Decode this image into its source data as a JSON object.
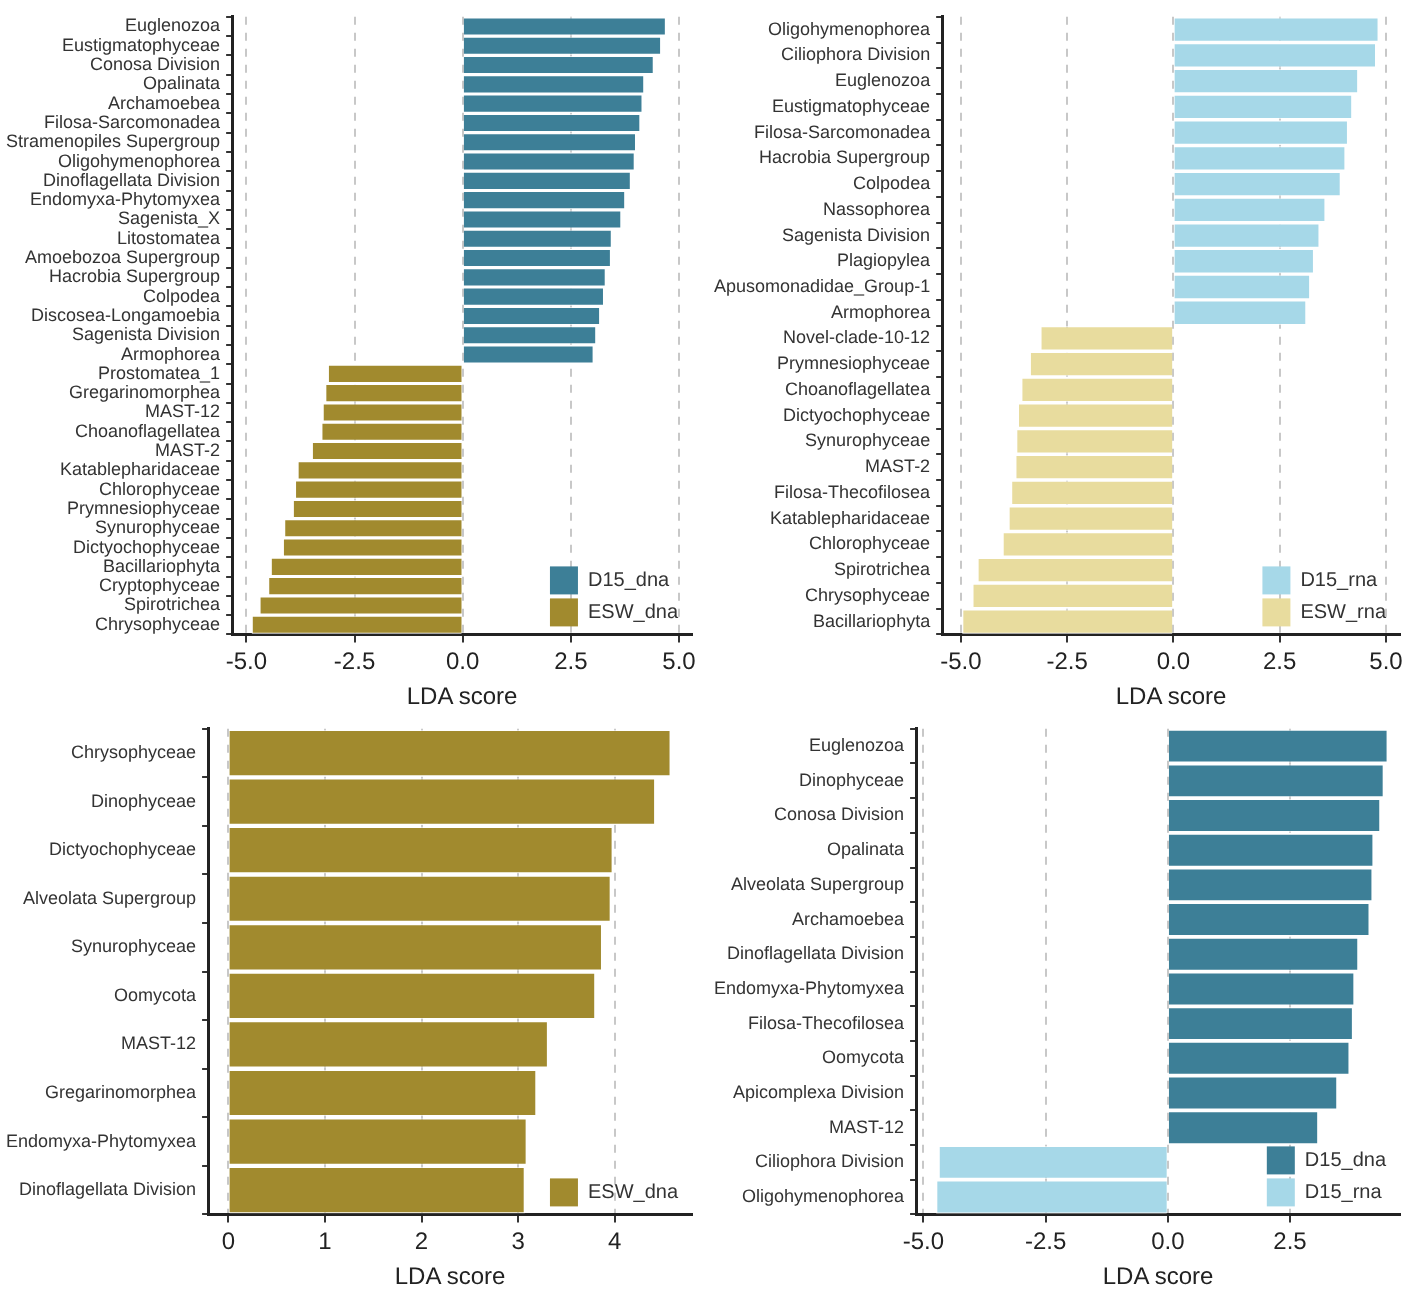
{
  "chart_data": [
    {
      "type": "bar",
      "orientation": "horizontal",
      "xlabel": "LDA score",
      "xlim": [
        -5.33,
        5.3
      ],
      "xticks": [
        {
          "value": -5,
          "label": "-5.0"
        },
        {
          "value": -2.5,
          "label": "-2.5"
        },
        {
          "value": 0,
          "label": "0.0"
        },
        {
          "value": 2.5,
          "label": "2.5"
        },
        {
          "value": 5,
          "label": "5.0"
        }
      ],
      "grid": "x",
      "legend": "bottom right",
      "categories": [
        "Euglenozoa",
        "Eustigmatophyceae",
        "Conosa Division",
        "Opalinata",
        "Archamoebea",
        "Filosa-Sarcomonadea",
        "Stramenopiles Supergroup",
        "Oligohymenophorea",
        "Dinoflagellata Division",
        "Endomyxa-Phytomyxea",
        "Sagenista_X",
        "Litostomatea",
        "Amoebozoa Supergroup",
        "Hacrobia Supergroup",
        "Colpodea",
        "Discosea-Longamoebia",
        "Sagenista Division",
        "Armophorea",
        "Prostomatea_1",
        "Gregarinomorphea",
        "MAST-12",
        "Choanoflagellatea",
        "MAST-2",
        "Katablepharidaceae",
        "Chlorophyceae",
        "Prymnesiophyceae",
        "Synurophyceae",
        "Dictyochophyceae",
        "Bacillariophyta",
        "Cryptophyceae",
        "Spirotrichea",
        "Chrysophyceae"
      ],
      "series": [
        {
          "name": "D15_dna",
          "color": "#3d7f97",
          "values": [
            4.7,
            4.59,
            4.42,
            4.2,
            4.16,
            4.11,
            4.01,
            3.98,
            3.89,
            3.76,
            3.67,
            3.45,
            3.43,
            3.31,
            3.27,
            3.18,
            3.09,
            3.03,
            null,
            null,
            null,
            null,
            null,
            null,
            null,
            null,
            null,
            null,
            null,
            null,
            null,
            null
          ]
        },
        {
          "name": "ESW_dna",
          "color": "#a18a2e",
          "values": [
            null,
            null,
            null,
            null,
            null,
            null,
            null,
            null,
            null,
            null,
            null,
            null,
            null,
            null,
            null,
            null,
            null,
            null,
            -3.12,
            -3.18,
            -3.24,
            -3.27,
            -3.49,
            -3.82,
            -3.88,
            -3.93,
            -4.13,
            -4.16,
            -4.44,
            -4.5,
            -4.7,
            -4.88
          ]
        }
      ]
    },
    {
      "type": "bar",
      "orientation": "horizontal",
      "xlabel": "LDA score",
      "xlim": [
        -5.44,
        5.33
      ],
      "xticks": [
        {
          "value": -5,
          "label": "-5.0"
        },
        {
          "value": -2.5,
          "label": "-2.5"
        },
        {
          "value": 0,
          "label": "0.0"
        },
        {
          "value": 2.5,
          "label": "2.5"
        },
        {
          "value": 5,
          "label": "5.0"
        }
      ],
      "grid": "x",
      "legend": "bottom right",
      "categories": [
        "Oligohymenophorea",
        "Ciliophora Division",
        "Euglenozoa",
        "Eustigmatophyceae",
        "Filosa-Sarcomonadea",
        "Hacrobia Supergroup",
        "Colpodea",
        "Nassophorea",
        "Sagenista Division",
        "Plagiopylea",
        "Apusomonadidae_Group-1",
        "Armophorea",
        "Novel-clade-10-12",
        "Prymnesiophyceae",
        "Choanoflagellatea",
        "Dictyochophyceae",
        "Synurophyceae",
        "MAST-2",
        "Filosa-Thecofilosea",
        "Katablepharidaceae",
        "Chlorophyceae",
        "Spirotrichea",
        "Chrysophyceae",
        "Bacillariophyta"
      ],
      "series": [
        {
          "name": "D15_rna",
          "color": "#a6d8e8",
          "values": [
            4.83,
            4.77,
            4.35,
            4.21,
            4.11,
            4.05,
            3.94,
            3.58,
            3.44,
            3.31,
            3.22,
            3.13,
            null,
            null,
            null,
            null,
            null,
            null,
            null,
            null,
            null,
            null,
            null,
            null
          ]
        },
        {
          "name": "ESW_rna",
          "color": "#e8dc9e",
          "values": [
            null,
            null,
            null,
            null,
            null,
            null,
            null,
            null,
            null,
            null,
            null,
            null,
            -3.13,
            -3.38,
            -3.58,
            -3.66,
            -3.7,
            -3.72,
            -3.82,
            -3.88,
            -4.02,
            -4.61,
            -4.73,
            -4.97
          ]
        }
      ]
    },
    {
      "type": "bar",
      "orientation": "horizontal",
      "xlabel": "LDA score",
      "xlim": [
        -0.21,
        4.8
      ],
      "xticks": [
        0,
        1,
        2,
        3,
        4
      ],
      "grid": "x",
      "legend": "bottom right",
      "categories": [
        "Chrysophyceae",
        "Dinophyceae",
        "Dictyochophyceae",
        "Alveolata Supergroup",
        "Synurophyceae",
        "Oomycota",
        "MAST-12",
        "Gregarinomorphea",
        "Endomyxa-Phytomyxea",
        "Dinoflagellata Division"
      ],
      "series": [
        {
          "name": "ESW_dna",
          "color": "#a18a2e",
          "values": [
            4.58,
            4.42,
            3.98,
            3.96,
            3.87,
            3.8,
            3.31,
            3.19,
            3.09,
            3.07
          ]
        }
      ]
    },
    {
      "type": "bar",
      "orientation": "horizontal",
      "xlabel": "LDA score",
      "xlim": [
        -5.15,
        4.75
      ],
      "xticks": [
        {
          "value": -5,
          "label": "-5.0"
        },
        {
          "value": -2.5,
          "label": "-2.5"
        },
        {
          "value": 0,
          "label": "0.0"
        },
        {
          "value": 2.5,
          "label": "2.5"
        }
      ],
      "grid": "x",
      "legend": "bottom right",
      "categories": [
        "Euglenozoa",
        "Dinophyceae",
        "Conosa Division",
        "Opalinata",
        "Alveolata Supergroup",
        "Archamoebea",
        "Dinoflagellata Division",
        "Endomyxa-Phytomyxea",
        "Filosa-Thecofilosea",
        "Oomycota",
        "Apicomplexa Division",
        "MAST-12",
        "Ciliophora Division",
        "Oligohymenophorea"
      ],
      "series": [
        {
          "name": "D15_dna",
          "color": "#3d7f97",
          "values": [
            4.5,
            4.42,
            4.35,
            4.21,
            4.19,
            4.13,
            3.9,
            3.82,
            3.79,
            3.72,
            3.47,
            3.08,
            null,
            null
          ]
        },
        {
          "name": "D15_rna",
          "color": "#a6d8e8",
          "values": [
            null,
            null,
            null,
            null,
            null,
            null,
            null,
            null,
            null,
            null,
            null,
            null,
            -4.69,
            -4.74
          ]
        }
      ]
    }
  ]
}
